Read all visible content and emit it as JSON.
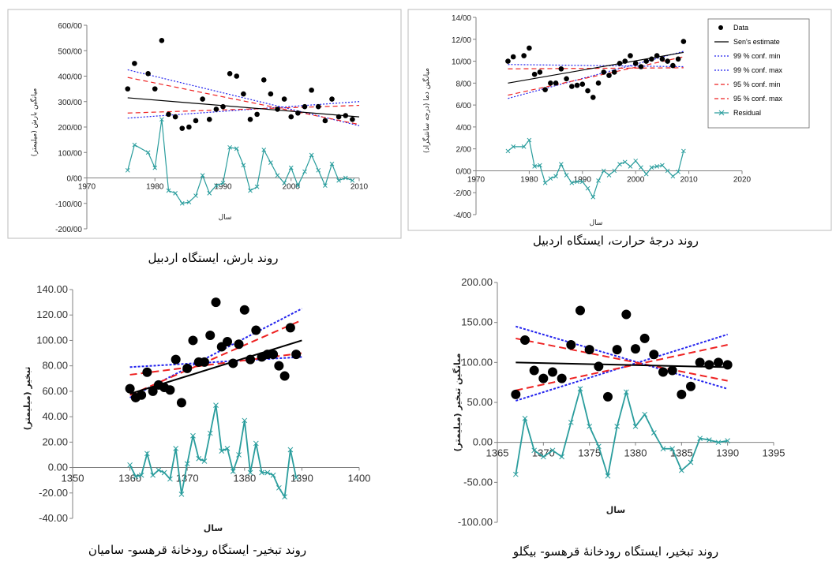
{
  "captions": {
    "c1": "روند بارش، ایستگاه اردبیل",
    "c2": "روند درجهٔ حرارت، ایستگاه اردبیل",
    "c3": "روند تبخیر- ایستگاه رودخانهٔ قرهسو- سامیان",
    "c4": "روند تبخیر، ایستگاه رودخانهٔ قرهسو- بیگلو"
  },
  "chart_data": [
    {
      "id": "c1",
      "type": "scatter",
      "title": "",
      "xlabel": "سال",
      "ylabel": "میانگین بارش (میلیمتر)",
      "xlim": [
        1970,
        2010
      ],
      "ylim": [
        -200,
        600
      ],
      "xticks": [
        "1970",
        "1980",
        "1990",
        "2000",
        "2010"
      ],
      "yticks": [
        "600/00",
        "500/00",
        "400/00",
        "300/00",
        "200/00",
        "100/00",
        "0/00",
        "-100/00",
        "-200/00"
      ],
      "grid": false,
      "legend": false,
      "data": {
        "x": [
          1976,
          1977,
          1979,
          1980,
          1981,
          1982,
          1983,
          1984,
          1985,
          1986,
          1987,
          1988,
          1989,
          1990,
          1991,
          1992,
          1993,
          1994,
          1995,
          1996,
          1997,
          1998,
          1999,
          2000,
          2001,
          2002,
          2003,
          2004,
          2005,
          2006,
          2007,
          2008,
          2009
        ],
        "y": [
          350,
          450,
          410,
          350,
          540,
          250,
          240,
          195,
          200,
          225,
          310,
          230,
          270,
          280,
          410,
          400,
          330,
          230,
          250,
          385,
          330,
          270,
          310,
          240,
          255,
          280,
          345,
          280,
          225,
          310,
          240,
          245,
          230
        ]
      },
      "residual": {
        "x": [
          1976,
          1977,
          1979,
          1980,
          1981,
          1982,
          1983,
          1984,
          1985,
          1986,
          1987,
          1988,
          1989,
          1990,
          1991,
          1992,
          1993,
          1994,
          1995,
          1996,
          1997,
          1998,
          1999,
          2000,
          2001,
          2002,
          2003,
          2004,
          2005,
          2006,
          2007,
          2008,
          2009
        ],
        "y": [
          30,
          130,
          100,
          40,
          230,
          -50,
          -60,
          -100,
          -95,
          -70,
          10,
          -60,
          -30,
          -20,
          120,
          115,
          50,
          -50,
          -35,
          110,
          60,
          10,
          -20,
          40,
          -30,
          25,
          90,
          30,
          -30,
          55,
          -10,
          0,
          -10
        ]
      },
      "sen": [
        [
          1976,
          315
        ],
        [
          2010,
          240
        ]
      ],
      "ci99_min": [
        [
          1976,
          425
        ],
        [
          2010,
          205
        ]
      ],
      "ci99_max": [
        [
          1976,
          235
        ],
        [
          2010,
          300
        ]
      ],
      "ci95_min": [
        [
          1976,
          395
        ],
        [
          2010,
          210
        ]
      ],
      "ci95_max": [
        [
          1976,
          255
        ],
        [
          2010,
          285
        ]
      ]
    },
    {
      "id": "c2",
      "type": "scatter",
      "title": "",
      "xlabel": "سال",
      "ylabel": "میانگین دما (درجه سانتیگراد)",
      "xlim": [
        1970,
        2020
      ],
      "ylim": [
        -4,
        14
      ],
      "xticks": [
        "1970",
        "1980",
        "1990",
        "2000",
        "2010",
        "2020"
      ],
      "yticks": [
        "14/00",
        "12/00",
        "10/00",
        "8/00",
        "6/00",
        "4/00",
        "2/00",
        "0/00",
        "-2/00",
        "-4/00"
      ],
      "grid": false,
      "legend": true,
      "legend_position": "top-right",
      "legend_entries": [
        "Data",
        "Sen's estimate",
        "99 % conf. min",
        "99 % conf. max",
        "95 % conf. min",
        "95 % conf. max",
        "Residual"
      ],
      "data": {
        "x": [
          1976,
          1977,
          1979,
          1980,
          1981,
          1982,
          1983,
          1984,
          1985,
          1986,
          1987,
          1988,
          1989,
          1990,
          1991,
          1992,
          1993,
          1994,
          1995,
          1996,
          1997,
          1998,
          1999,
          2000,
          2001,
          2002,
          2003,
          2004,
          2005,
          2006,
          2007,
          2008,
          2009
        ],
        "y": [
          10,
          10.4,
          10.5,
          11.2,
          8.8,
          9,
          7.4,
          8,
          8,
          9.3,
          8.4,
          7.7,
          7.8,
          7.9,
          7.3,
          6.7,
          8,
          9,
          8.7,
          9,
          9.8,
          10,
          10.5,
          9.8,
          9.5,
          10,
          10.2,
          10.5,
          10.2,
          10,
          9.6,
          10.2,
          11.8
        ]
      },
      "residual": {
        "x": [
          1976,
          1977,
          1979,
          1980,
          1981,
          1982,
          1983,
          1984,
          1985,
          1986,
          1987,
          1988,
          1989,
          1990,
          1991,
          1992,
          1993,
          1994,
          1995,
          1996,
          1997,
          1998,
          1999,
          2000,
          2001,
          2002,
          2003,
          2004,
          2005,
          2006,
          2007,
          2008,
          2009
        ],
        "y": [
          1.8,
          2.2,
          2.2,
          2.8,
          0.4,
          0.5,
          -1.1,
          -0.7,
          -0.5,
          0.6,
          -0.4,
          -1.1,
          -1,
          -1,
          -1.6,
          -2.4,
          -0.9,
          0,
          -0.4,
          0,
          0.6,
          0.8,
          0.4,
          0.9,
          0.3,
          -0.3,
          0.3,
          0.4,
          0.5,
          0,
          -0.5,
          -0.1,
          1.8
        ]
      },
      "sen": [
        [
          1976,
          8
        ],
        [
          2009,
          10.8
        ]
      ],
      "ci99_min": [
        [
          1976,
          6.6
        ],
        [
          2009,
          10.9
        ]
      ],
      "ci99_max": [
        [
          1976,
          9.7
        ],
        [
          2009,
          9.5
        ]
      ],
      "ci95_min": [
        [
          1976,
          6.9
        ],
        [
          2009,
          10.4
        ]
      ],
      "ci95_max": [
        [
          1976,
          9.3
        ],
        [
          2009,
          9.4
        ]
      ]
    },
    {
      "id": "c3",
      "type": "scatter",
      "title": "",
      "xlabel": "سال",
      "ylabel": "تبخیر (میلیمتر)",
      "xlim": [
        1350,
        1400
      ],
      "ylim": [
        -40,
        140
      ],
      "xticks": [
        "1350",
        "1360",
        "1370",
        "1380",
        "1390",
        "1400"
      ],
      "yticks": [
        "140.00",
        "120.00",
        "100.00",
        "80.00",
        "60.00",
        "40.00",
        "20.00",
        "0.00",
        "-20.00",
        "-40.00"
      ],
      "grid": false,
      "legend": false,
      "data": {
        "x": [
          1360,
          1361,
          1362,
          1363,
          1364,
          1365,
          1366,
          1367,
          1368,
          1369,
          1370,
          1371,
          1372,
          1373,
          1374,
          1375,
          1376,
          1377,
          1378,
          1379,
          1380,
          1381,
          1382,
          1383,
          1384,
          1385,
          1386,
          1387,
          1388,
          1389
        ],
        "y": [
          62,
          55,
          57,
          75,
          60,
          65,
          63,
          61,
          85,
          51,
          78,
          100,
          83,
          83,
          104,
          130,
          95,
          99,
          82,
          97,
          124,
          85,
          108,
          87,
          89,
          89,
          80,
          72,
          110,
          89
        ]
      },
      "residual": {
        "x": [
          1360,
          1361,
          1362,
          1363,
          1364,
          1365,
          1366,
          1367,
          1368,
          1369,
          1370,
          1371,
          1372,
          1373,
          1374,
          1375,
          1376,
          1377,
          1378,
          1379,
          1380,
          1381,
          1382,
          1383,
          1384,
          1385,
          1386,
          1387,
          1388,
          1389
        ],
        "y": [
          2,
          -7,
          -6,
          11,
          -6,
          -2,
          -4,
          -9,
          15,
          -21,
          3,
          25,
          7,
          5,
          27,
          49,
          13,
          15,
          -3,
          10,
          37,
          -4,
          19,
          -4,
          -4,
          -6,
          -16,
          -23,
          14,
          -8
        ]
      },
      "sen": [
        [
          1360,
          58
        ],
        [
          1390,
          100
        ]
      ],
      "ci99_min": [
        [
          1360,
          55
        ],
        [
          1390,
          125
        ]
      ],
      "ci99_max": [
        [
          1360,
          79
        ],
        [
          1390,
          87
        ]
      ],
      "ci95_min": [
        [
          1360,
          57
        ],
        [
          1390,
          116
        ]
      ],
      "ci95_max": [
        [
          1360,
          73
        ],
        [
          1390,
          90
        ]
      ]
    },
    {
      "id": "c4",
      "type": "scatter",
      "title": "",
      "xlabel": "سال",
      "ylabel": "میانگین تبخیر (میلیمتر)",
      "xlim": [
        1365,
        1395
      ],
      "ylim": [
        -100,
        200
      ],
      "xticks": [
        "1365",
        "1370",
        "1375",
        "1380",
        "1385",
        "1390",
        "1395"
      ],
      "yticks": [
        "200.00",
        "150.00",
        "100.00",
        "50.00",
        "0.00",
        "-50.00",
        "-100.00"
      ],
      "grid": false,
      "legend": false,
      "data": {
        "x": [
          1367,
          1368,
          1369,
          1370,
          1371,
          1372,
          1373,
          1374,
          1375,
          1376,
          1377,
          1378,
          1379,
          1380,
          1381,
          1382,
          1383,
          1384,
          1385,
          1386,
          1387,
          1388,
          1389,
          1390
        ],
        "y": [
          60,
          128,
          90,
          80,
          88,
          80,
          122,
          165,
          116,
          95,
          57,
          116,
          160,
          117,
          130,
          110,
          88,
          90,
          60,
          70,
          100,
          97,
          100,
          97
        ]
      },
      "residual": {
        "x": [
          1367,
          1368,
          1369,
          1370,
          1371,
          1372,
          1373,
          1374,
          1375,
          1376,
          1377,
          1378,
          1379,
          1380,
          1381,
          1382,
          1383,
          1384,
          1385,
          1386,
          1387,
          1388,
          1389,
          1390
        ],
        "y": [
          -40,
          30,
          -10,
          -18,
          -10,
          -18,
          25,
          67,
          20,
          -5,
          -42,
          20,
          63,
          20,
          35,
          12,
          -8,
          -8,
          -35,
          -25,
          5,
          3,
          0,
          2
        ]
      },
      "sen": [
        [
          1367,
          100
        ],
        [
          1390,
          94
        ]
      ],
      "ci99_min": [
        [
          1367,
          145
        ],
        [
          1390,
          67
        ]
      ],
      "ci99_max": [
        [
          1367,
          52
        ],
        [
          1390,
          135
        ]
      ],
      "ci95_min": [
        [
          1367,
          130
        ],
        [
          1390,
          77
        ]
      ],
      "ci95_max": [
        [
          1367,
          65
        ],
        [
          1390,
          122
        ]
      ]
    }
  ],
  "colors": {
    "data": "#000000",
    "sen": "#000000",
    "ci99": "#2222ee",
    "ci95": "#ee2222",
    "residual": "#2a9d9d",
    "axis": "#808080"
  }
}
